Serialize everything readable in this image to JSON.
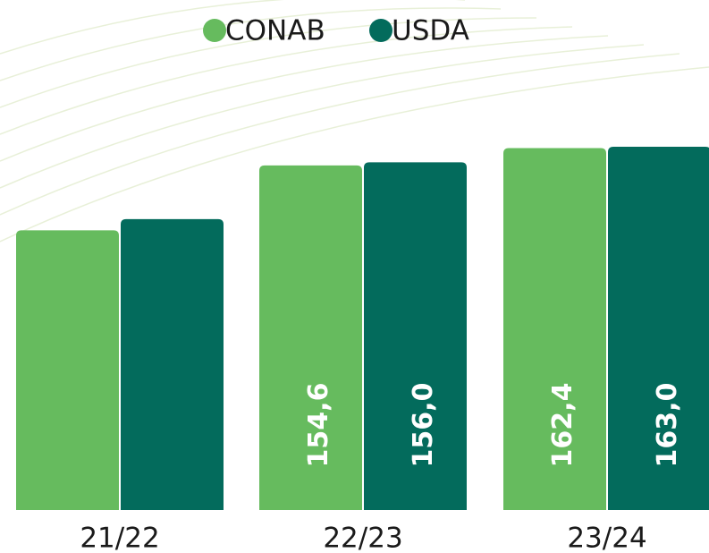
{
  "chart_data": {
    "type": "bar",
    "categories": [
      "21/22",
      "22/23",
      "23/24"
    ],
    "series": [
      {
        "name": "CONAB",
        "color": "#66bb5e",
        "values": [
          125.5,
          154.6,
          162.4
        ],
        "value_labels": [
          null,
          "154,6",
          "162,4"
        ]
      },
      {
        "name": "USDA",
        "color": "#036b5c",
        "values": [
          130.5,
          156.0,
          163.0
        ],
        "value_labels": [
          null,
          "156,0",
          "163,0"
        ]
      }
    ],
    "ylim": [
      0,
      165
    ]
  }
}
